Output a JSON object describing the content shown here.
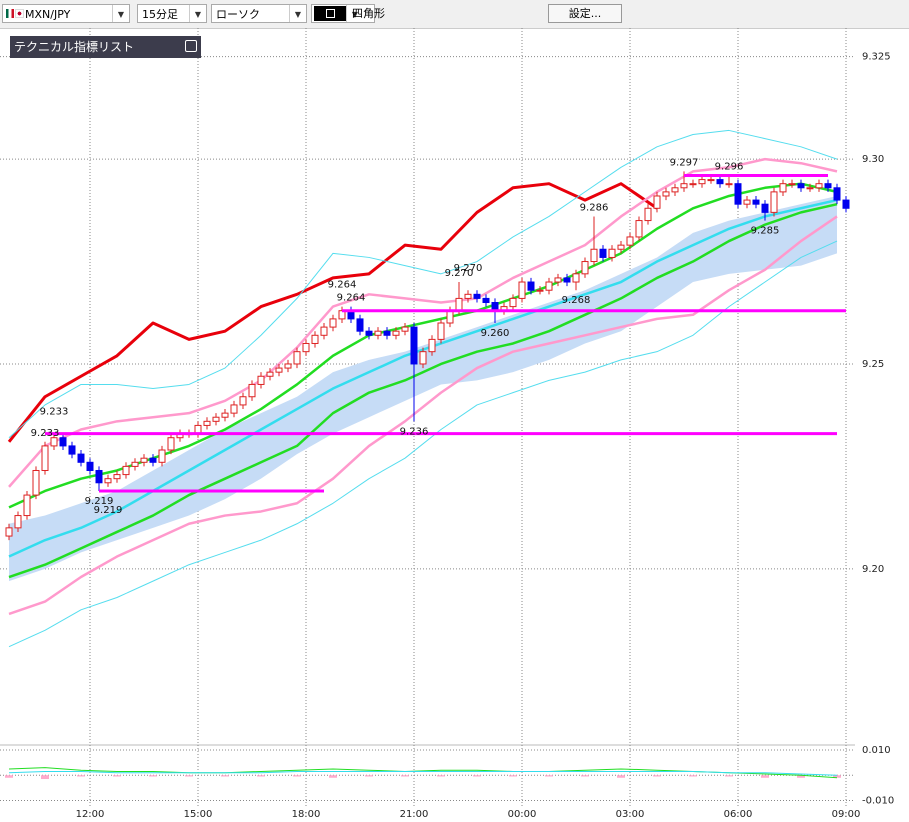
{
  "toolbar": {
    "symbol": "MXN/JPY",
    "timeframe": "15分足",
    "chart_style": "ローソク",
    "drawing_tool": "四角形",
    "settings_button": "設定..."
  },
  "indicator_panel": {
    "title": "テクニカル指標リスト"
  },
  "chart_data": [
    {
      "type": "candlestick",
      "open": [
        9.208,
        9.21,
        9.213,
        9.218,
        9.224,
        9.23,
        9.232,
        9.23,
        9.228,
        9.226,
        9.224,
        9.221,
        9.222,
        9.223,
        9.225,
        9.226,
        9.227,
        9.226,
        9.229,
        9.232,
        9.233,
        9.233,
        9.235,
        9.236,
        9.237,
        9.238,
        9.24,
        9.242,
        9.245,
        9.247,
        9.248,
        9.249,
        9.25,
        9.253,
        9.255,
        9.257,
        9.259,
        9.261,
        9.263,
        9.261,
        9.258,
        9.257,
        9.258,
        9.257,
        9.258,
        9.259,
        9.25,
        9.253,
        9.256,
        9.26,
        9.263,
        9.266,
        9.267,
        9.266,
        9.265,
        9.263,
        9.264,
        9.266,
        9.27,
        9.268,
        9.268,
        9.27,
        9.271,
        9.27,
        9.272,
        9.275,
        9.278,
        9.276,
        9.278,
        9.279,
        9.281,
        9.285,
        9.288,
        9.291,
        9.292,
        9.293,
        9.294,
        9.294,
        9.295,
        9.295,
        9.294,
        9.294,
        9.289,
        9.29,
        9.289,
        9.287,
        9.292,
        9.294,
        9.294,
        9.293,
        9.293,
        9.294,
        9.293,
        9.29
      ],
      "high": [
        9.211,
        9.214,
        9.219,
        9.225,
        9.231,
        9.233,
        9.233,
        9.231,
        9.229,
        9.227,
        9.225,
        9.223,
        9.224,
        9.226,
        9.227,
        9.228,
        9.228,
        9.23,
        9.233,
        9.234,
        9.234,
        9.236,
        9.237,
        9.238,
        9.239,
        9.241,
        9.243,
        9.246,
        9.248,
        9.249,
        9.25,
        9.251,
        9.254,
        9.256,
        9.258,
        9.26,
        9.262,
        9.264,
        9.264,
        9.262,
        9.259,
        9.259,
        9.259,
        9.259,
        9.26,
        9.26,
        9.254,
        9.257,
        9.261,
        9.264,
        9.27,
        9.268,
        9.268,
        9.267,
        9.266,
        9.265,
        9.267,
        9.271,
        9.271,
        9.269,
        9.271,
        9.272,
        9.272,
        9.273,
        9.276,
        9.286,
        9.279,
        9.279,
        9.28,
        9.282,
        9.286,
        9.289,
        9.292,
        9.293,
        9.294,
        9.297,
        9.295,
        9.296,
        9.296,
        9.296,
        9.296,
        9.295,
        9.291,
        9.291,
        9.29,
        9.293,
        9.295,
        9.295,
        9.295,
        9.294,
        9.295,
        9.295,
        9.294,
        9.291
      ],
      "low": [
        9.207,
        9.209,
        9.212,
        9.217,
        9.223,
        9.229,
        9.229,
        9.227,
        9.225,
        9.223,
        9.219,
        9.22,
        9.221,
        9.222,
        9.224,
        9.225,
        9.225,
        9.225,
        9.228,
        9.231,
        9.232,
        9.232,
        9.234,
        9.235,
        9.236,
        9.237,
        9.239,
        9.241,
        9.244,
        9.246,
        9.247,
        9.248,
        9.249,
        9.252,
        9.254,
        9.256,
        9.258,
        9.26,
        9.26,
        9.257,
        9.256,
        9.256,
        9.256,
        9.256,
        9.257,
        9.236,
        9.249,
        9.252,
        9.255,
        9.259,
        9.262,
        9.265,
        9.265,
        9.264,
        9.26,
        9.262,
        9.263,
        9.265,
        9.267,
        9.267,
        9.267,
        9.269,
        9.269,
        9.268,
        9.271,
        9.274,
        9.275,
        9.275,
        9.277,
        9.278,
        9.28,
        9.284,
        9.287,
        9.29,
        9.291,
        9.292,
        9.293,
        9.293,
        9.294,
        9.293,
        9.293,
        9.288,
        9.288,
        9.288,
        9.285,
        9.286,
        9.291,
        9.293,
        9.292,
        9.292,
        9.292,
        9.292,
        9.289,
        9.287
      ],
      "close": [
        9.21,
        9.213,
        9.218,
        9.224,
        9.23,
        9.232,
        9.23,
        9.228,
        9.226,
        9.224,
        9.221,
        9.222,
        9.223,
        9.225,
        9.226,
        9.227,
        9.226,
        9.229,
        9.232,
        9.233,
        9.233,
        9.235,
        9.236,
        9.237,
        9.238,
        9.24,
        9.242,
        9.245,
        9.247,
        9.248,
        9.249,
        9.25,
        9.253,
        9.255,
        9.257,
        9.259,
        9.261,
        9.263,
        9.261,
        9.258,
        9.257,
        9.258,
        9.257,
        9.258,
        9.259,
        9.25,
        9.253,
        9.256,
        9.26,
        9.263,
        9.266,
        9.267,
        9.266,
        9.265,
        9.263,
        9.264,
        9.266,
        9.27,
        9.268,
        9.268,
        9.27,
        9.271,
        9.27,
        9.272,
        9.275,
        9.278,
        9.276,
        9.278,
        9.279,
        9.281,
        9.285,
        9.288,
        9.291,
        9.292,
        9.293,
        9.294,
        9.294,
        9.295,
        9.295,
        9.294,
        9.294,
        9.289,
        9.29,
        9.289,
        9.287,
        9.292,
        9.294,
        9.294,
        9.293,
        9.293,
        9.294,
        9.293,
        9.29,
        9.288
      ],
      "up_color": "#dd2222",
      "down_color": "#0000ee",
      "xlim": [
        -1,
        94
      ],
      "xticks": [
        {
          "value": 9,
          "label": "12:00"
        },
        {
          "value": 21,
          "label": "15:00"
        },
        {
          "value": 33,
          "label": "18:00"
        },
        {
          "value": 45,
          "label": "21:00"
        },
        {
          "value": 57,
          "label": "00:00"
        },
        {
          "value": 69,
          "label": "03:00"
        },
        {
          "value": 81,
          "label": "06:00"
        },
        {
          "value": 93,
          "label": "09:00"
        }
      ],
      "ylim": [
        9.157,
        9.332
      ],
      "yticks": [
        9.325,
        {
          "value": 9.3,
          "label": "9.30"
        },
        9.25,
        {
          "value": 9.2,
          "label": "9.20"
        }
      ],
      "grid": true,
      "overlay_x": [
        0,
        4,
        8,
        12,
        16,
        20,
        24,
        28,
        32,
        36,
        40,
        44,
        48,
        52,
        56,
        60,
        64,
        68,
        72,
        76,
        80,
        84,
        88,
        92
      ],
      "lines": [
        {
          "color": "#e8000b",
          "values": [
            9.231,
            9.242,
            9.247,
            9.252,
            9.26,
            9.256,
            9.258,
            9.264,
            9.267,
            9.271,
            9.272,
            9.279,
            9.278,
            9.287,
            9.293,
            9.294,
            9.29,
            9.294,
            9.288,
            null,
            null,
            null,
            null,
            null
          ]
        },
        {
          "color": "#ff99cc",
          "values": [
            9.22,
            9.23,
            9.234,
            9.236,
            9.237,
            9.238,
            9.241,
            9.246,
            9.254,
            9.264,
            9.267,
            9.266,
            9.265,
            9.266,
            9.271,
            9.275,
            9.279,
            9.286,
            9.292,
            9.297,
            9.298,
            9.3,
            9.299,
            9.297
          ]
        },
        {
          "color": "#ff99cc",
          "values": [
            9.189,
            9.192,
            9.198,
            9.203,
            9.207,
            9.211,
            9.213,
            9.214,
            9.216,
            9.222,
            9.23,
            9.236,
            9.243,
            9.249,
            9.253,
            9.255,
            9.257,
            9.259,
            9.261,
            9.262,
            9.268,
            9.273,
            9.28,
            9.286
          ]
        },
        {
          "color": "#55ddee",
          "values": [
            9.232,
            9.24,
            9.245,
            9.245,
            9.244,
            9.245,
            9.249,
            9.257,
            9.266,
            9.277,
            9.276,
            9.274,
            9.272,
            9.275,
            9.281,
            9.286,
            9.292,
            9.298,
            9.303,
            9.306,
            9.307,
            9.305,
            9.303,
            9.3
          ]
        },
        {
          "color": "#55ddee",
          "values": [
            9.181,
            9.185,
            9.19,
            9.193,
            9.197,
            9.201,
            9.204,
            9.207,
            9.211,
            9.216,
            9.222,
            9.227,
            9.234,
            9.24,
            9.243,
            9.246,
            9.248,
            9.251,
            9.253,
            9.257,
            9.264,
            9.27,
            9.276,
            9.28
          ]
        },
        {
          "color": "#22dd22",
          "values": [
            9.215,
            9.219,
            9.222,
            9.224,
            9.227,
            9.23,
            9.234,
            9.239,
            9.245,
            9.252,
            9.257,
            9.259,
            9.261,
            9.263,
            9.266,
            9.269,
            9.273,
            9.277,
            9.283,
            9.288,
            9.291,
            9.293,
            9.294,
            9.292
          ]
        },
        {
          "color": "#22dd22",
          "values": [
            9.198,
            9.201,
            9.205,
            9.209,
            9.213,
            9.218,
            9.222,
            9.226,
            9.23,
            9.238,
            9.243,
            9.246,
            9.25,
            9.253,
            9.255,
            9.258,
            9.262,
            9.266,
            9.271,
            9.275,
            9.28,
            9.284,
            9.287,
            9.289
          ]
        },
        {
          "color": "#33ddee",
          "values": [
            9.203,
            9.207,
            9.21,
            9.214,
            9.219,
            9.224,
            9.229,
            9.234,
            9.239,
            9.244,
            9.248,
            9.252,
            9.255,
            9.258,
            9.261,
            9.264,
            9.267,
            9.27,
            9.275,
            9.279,
            9.283,
            9.286,
            9.288,
            9.29
          ]
        }
      ],
      "cloud": {
        "color": "#c6dcf6",
        "upper": [
          9.211,
          9.213,
          9.216,
          9.219,
          9.224,
          9.229,
          9.234,
          9.238,
          9.242,
          9.248,
          9.251,
          9.253,
          9.256,
          9.259,
          9.262,
          9.265,
          9.268,
          9.272,
          9.276,
          9.282,
          9.285,
          9.287,
          9.289,
          9.291
        ],
        "lower": [
          9.197,
          9.2,
          9.204,
          9.207,
          9.21,
          9.213,
          9.217,
          9.222,
          9.228,
          9.233,
          9.237,
          9.241,
          9.245,
          9.246,
          9.248,
          9.251,
          9.255,
          9.258,
          9.264,
          9.27,
          9.272,
          9.273,
          9.274,
          9.277
        ]
      },
      "level_color": "#ff00ff",
      "levels": [
        {
          "start": 4,
          "end": 92,
          "value": 9.233
        },
        {
          "start": 10,
          "end": 35,
          "value": 9.219
        },
        {
          "start": 37,
          "end": 93,
          "value": 9.263
        },
        {
          "start": 75,
          "end": 91,
          "value": 9.296
        }
      ],
      "annotations": [
        {
          "text": "9.233",
          "x": 4,
          "side": "above"
        },
        {
          "text": "9.233",
          "x": 5,
          "side": "above"
        },
        {
          "text": "9.219",
          "x": 10,
          "side": "below"
        },
        {
          "text": "9.219",
          "x": 11,
          "side": "below"
        },
        {
          "text": "9.264",
          "x": 38,
          "side": "above"
        },
        {
          "text": "9.264",
          "x": 37,
          "side": "above"
        },
        {
          "text": "9.270",
          "x": 50,
          "side": "above"
        },
        {
          "text": "9.270",
          "x": 51,
          "side": "above"
        },
        {
          "text": "9.260",
          "x": 54,
          "side": "below"
        },
        {
          "text": "9.236",
          "x": 45,
          "side": "below"
        },
        {
          "text": "9.268",
          "x": 63,
          "side": "below"
        },
        {
          "text": "9.286",
          "x": 65,
          "side": "above"
        },
        {
          "text": "9.297",
          "x": 75,
          "side": "above"
        },
        {
          "text": "9.296",
          "x": 80,
          "side": "above"
        },
        {
          "text": "9.285",
          "x": 84,
          "side": "below"
        }
      ]
    },
    {
      "type": "line",
      "x": [
        0,
        4,
        8,
        12,
        16,
        20,
        24,
        28,
        32,
        36,
        40,
        44,
        48,
        52,
        56,
        60,
        64,
        68,
        72,
        76,
        80,
        84,
        88,
        92
      ],
      "xlim": [
        -1,
        94
      ],
      "ylim": [
        -0.013,
        0.012
      ],
      "yticks": [
        {
          "value": 0.01,
          "label": "0.010"
        },
        {
          "value": -0.01,
          "label": "-0.010"
        }
      ],
      "series": [
        {
          "color": "#22dd22",
          "values": [
            0.0025,
            0.003,
            0.002,
            0.0015,
            0.0015,
            0.001,
            0.001,
            0.0015,
            0.002,
            0.0025,
            0.002,
            0.0015,
            0.002,
            0.002,
            0.0015,
            0.0015,
            0.002,
            0.0025,
            0.002,
            0.0015,
            0.001,
            0.0005,
            0,
            -0.001
          ]
        },
        {
          "color": "#33ddee",
          "values": [
            0.001,
            0.0015,
            0.0015,
            0.001,
            0.001,
            0.001,
            0.001,
            0.001,
            0.0015,
            0.0015,
            0.0015,
            0.0015,
            0.0015,
            0.0015,
            0.0015,
            0.0015,
            0.0015,
            0.0015,
            0.0015,
            0.0015,
            0.001,
            0.001,
            0.0005,
            0
          ]
        }
      ],
      "histogram": {
        "color": "#ffaacc",
        "values": [
          -0.001,
          -0.0015,
          -0.0005,
          -0.0005,
          -0.0005,
          -0.0005,
          -0.0005,
          -0.0005,
          -0.0005,
          -0.001,
          -0.0005,
          -0.0005,
          -0.0005,
          -0.0005,
          -0.0005,
          -0.0005,
          -0.0005,
          -0.001,
          -0.0005,
          -0.0005,
          -0.0005,
          -0.001,
          -0.001,
          -0.001
        ]
      }
    }
  ]
}
